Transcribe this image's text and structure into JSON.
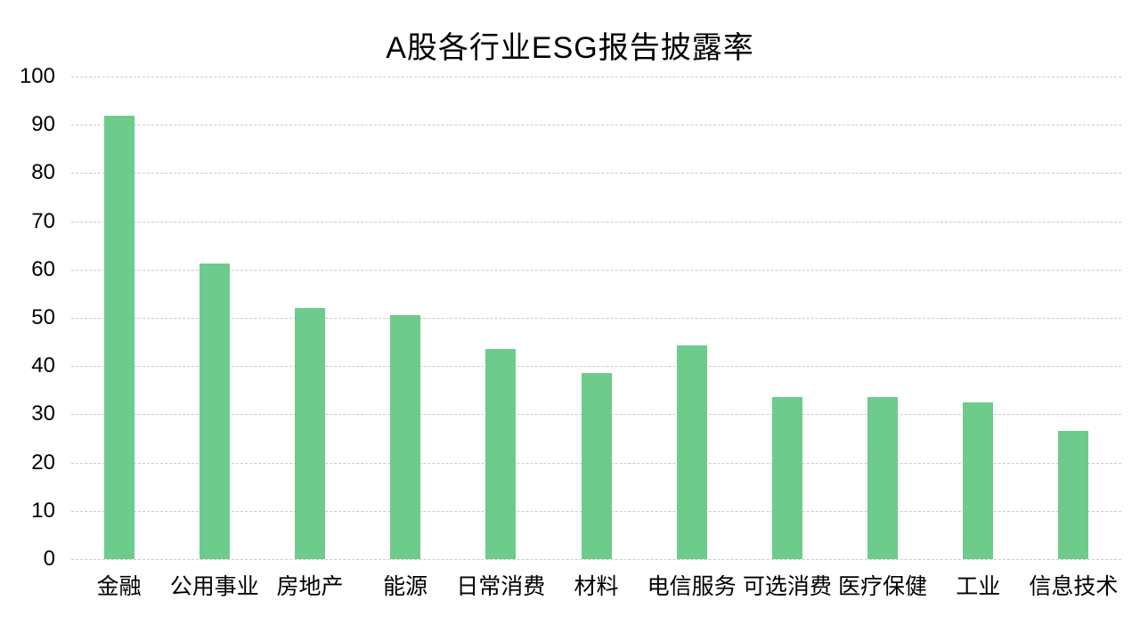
{
  "chart_data": {
    "type": "bar",
    "title": "A股各行业ESG报告披露率",
    "categories": [
      "金融",
      "公用事业",
      "房地产",
      "能源",
      "日常消费",
      "材料",
      "电信服务",
      "可选消费",
      "医疗保健",
      "工业",
      "信息技术"
    ],
    "values": [
      91.8,
      61.3,
      52.1,
      50.6,
      43.6,
      38.6,
      44.3,
      33.6,
      33.5,
      32.5,
      26.6
    ],
    "xlabel": "",
    "ylabel": "",
    "ylim": [
      0,
      100
    ],
    "ytick_step": 10,
    "yticks": [
      0,
      10,
      20,
      30,
      40,
      50,
      60,
      70,
      80,
      90,
      100
    ],
    "legend": "none",
    "grid": "horizontal-dashed",
    "colors": {
      "bar": "#6dcb8c",
      "grid": "#cccccc",
      "text": "#000000",
      "background": "#ffffff"
    }
  }
}
